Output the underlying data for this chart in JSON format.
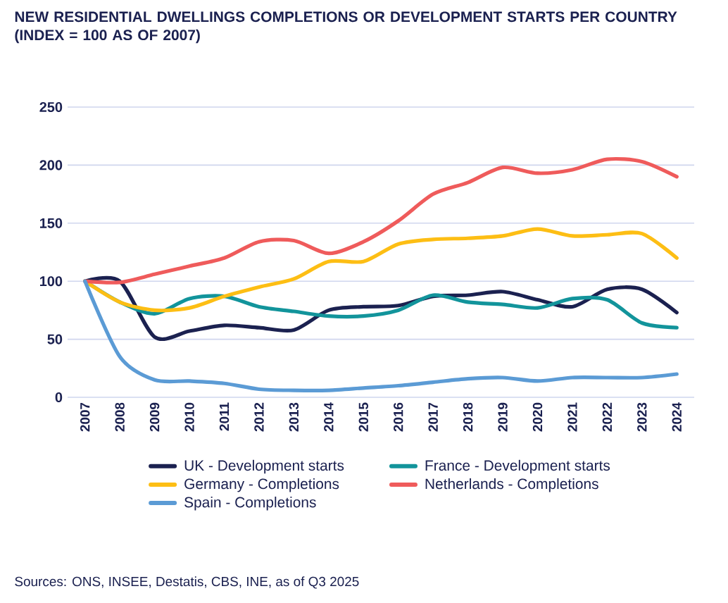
{
  "chart_data": {
    "type": "line",
    "title": "NEW RESIDENTIAL DWELLINGS COMPLETIONS OR DEVELOPMENT STARTS PER COUNTRY (INDEX = 100 AS OF 2007)",
    "categories": [
      "2007",
      "2008",
      "2009",
      "2010",
      "2011",
      "2012",
      "2013",
      "2014",
      "2015",
      "2016",
      "2017",
      "2018",
      "2019",
      "2020",
      "2021",
      "2022",
      "2023",
      "2024"
    ],
    "series": [
      {
        "name": "UK - Development starts",
        "color": "#1b2150",
        "values": [
          100,
          100,
          52,
          57,
          62,
          60,
          58,
          75,
          78,
          79,
          87,
          88,
          91,
          84,
          78,
          93,
          93,
          73
        ]
      },
      {
        "name": "France - Development starts",
        "color": "#12949b",
        "values": [
          100,
          82,
          72,
          85,
          87,
          78,
          74,
          70,
          70,
          75,
          88,
          82,
          80,
          77,
          85,
          84,
          64,
          60
        ]
      },
      {
        "name": "Germany - Completions",
        "color": "#fdbe14",
        "values": [
          100,
          82,
          75,
          77,
          87,
          95,
          102,
          117,
          117,
          132,
          136,
          137,
          139,
          145,
          139,
          140,
          141,
          120
        ]
      },
      {
        "name": "Netherlands - Completions",
        "color": "#ef5b5b",
        "values": [
          100,
          99,
          106,
          113,
          120,
          134,
          135,
          124,
          134,
          152,
          175,
          185,
          198,
          193,
          196,
          205,
          203,
          190
        ]
      },
      {
        "name": "Spain - Completions",
        "color": "#5b9bd5",
        "values": [
          100,
          35,
          15,
          14,
          12,
          7,
          6,
          6,
          8,
          10,
          13,
          16,
          17,
          14,
          17,
          17,
          17,
          20
        ]
      }
    ],
    "ylim": [
      0,
      250
    ],
    "yticks": [
      0,
      50,
      100,
      150,
      200,
      250
    ],
    "grid": "y",
    "legend": "bottom",
    "marker": "none",
    "line_style": "solid",
    "annotations": [
      "Sources: ONS, INSEE, Destatis, CBS, INE, as of Q3 2025"
    ]
  }
}
